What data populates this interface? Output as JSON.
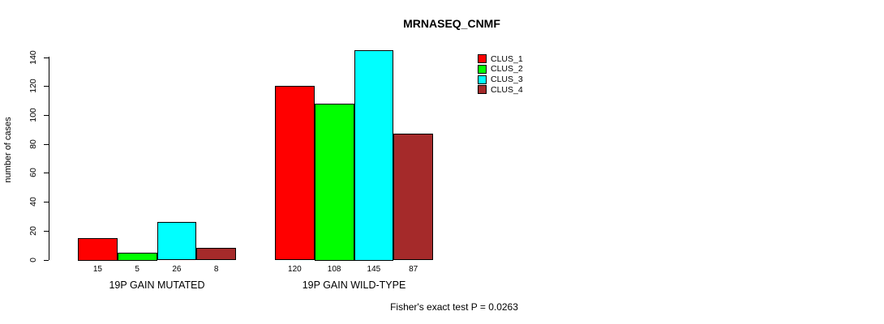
{
  "window": {
    "background": "#FFFFFF",
    "text_color": "#000000"
  },
  "chart_data": {
    "type": "bar",
    "title": "MRNASEQ_CNMF",
    "xlabel": "",
    "ylabel": "number of cases",
    "ylim": [
      0,
      140
    ],
    "yticks": [
      0,
      20,
      40,
      60,
      80,
      100,
      120,
      140
    ],
    "grid": false,
    "legend_position": "top-right",
    "categories": [
      "19P GAIN MUTATED",
      "19P GAIN WILD-TYPE"
    ],
    "series": [
      {
        "name": "CLUS_1",
        "color": "#FF0000",
        "values": [
          15,
          120
        ]
      },
      {
        "name": "CLUS_2",
        "color": "#00FF00",
        "values": [
          5,
          108
        ]
      },
      {
        "name": "CLUS_3",
        "color": "#00FFFF",
        "values": [
          26,
          145
        ]
      },
      {
        "name": "CLUS_4",
        "color": "#A52A2A",
        "values": [
          8,
          87
        ]
      }
    ],
    "bar_value_labels": [
      [
        15,
        5,
        26,
        8
      ],
      [
        120,
        108,
        145,
        87
      ]
    ],
    "bar_border_color": "#000000",
    "annotation": "Fisher's exact test P = 0.0263"
  }
}
